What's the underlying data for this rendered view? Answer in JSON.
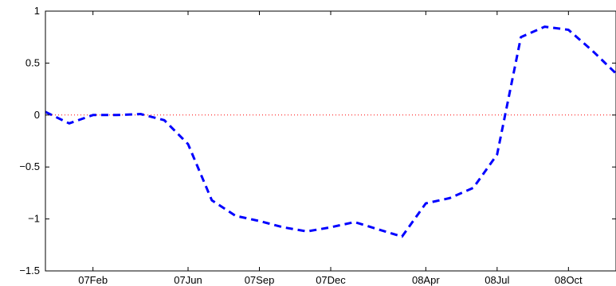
{
  "chart_data": {
    "type": "line",
    "title": "",
    "xlabel": "",
    "ylabel": "",
    "ylim": [
      -1.5,
      1
    ],
    "yticks": [
      1,
      0.5,
      0,
      -0.5,
      -1,
      -1.5
    ],
    "ytick_labels": [
      "1",
      "0.5",
      "0",
      "−0.5",
      "−1",
      "−1.5"
    ],
    "xticks": [
      "2007-02",
      "2007-06",
      "2007-09",
      "2007-12",
      "2008-04",
      "2008-07",
      "2008-10"
    ],
    "xtick_labels": [
      "07Feb",
      "07Jun",
      "07Sep",
      "07Dec",
      "08Apr",
      "08Jul",
      "08Oct"
    ],
    "xlim": [
      "2006-12",
      "2008-12"
    ],
    "reference_line": {
      "y": 0,
      "color": "#ff0000",
      "style": "dotted"
    },
    "series": [
      {
        "color": "#0000ff",
        "style": "dashed",
        "x": [
          "2006-12",
          "2007-01",
          "2007-02",
          "2007-03",
          "2007-04",
          "2007-05",
          "2007-06",
          "2007-07",
          "2007-08",
          "2007-09",
          "2007-10",
          "2007-11",
          "2007-12",
          "2008-01",
          "2008-02",
          "2008-03",
          "2008-04",
          "2008-05",
          "2008-06",
          "2008-07",
          "2008-08",
          "2008-09",
          "2008-10",
          "2008-11",
          "2008-12"
        ],
        "y": [
          0.03,
          -0.08,
          0.0,
          0.0,
          0.01,
          -0.05,
          -0.28,
          -0.82,
          -0.97,
          -1.02,
          -1.08,
          -1.12,
          -1.08,
          -1.03,
          -1.1,
          -1.17,
          -0.85,
          -0.8,
          -0.7,
          -0.38,
          0.75,
          0.85,
          0.82,
          0.62,
          0.4
        ]
      }
    ]
  }
}
